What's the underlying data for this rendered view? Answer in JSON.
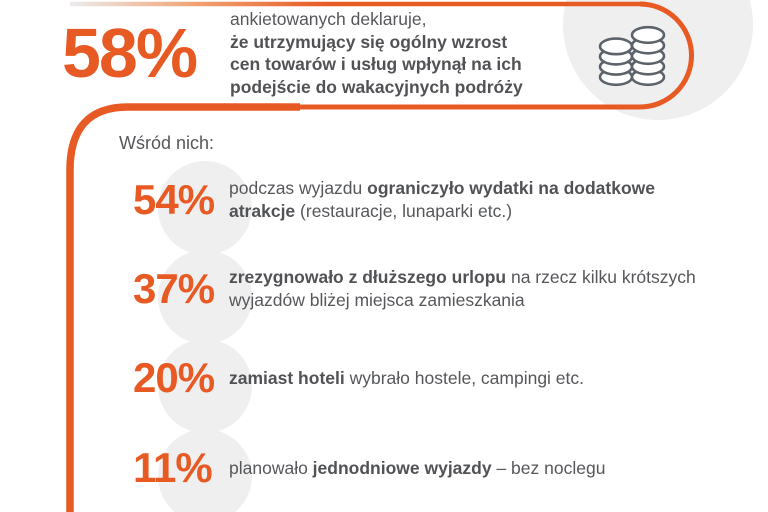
{
  "accent_color": "#e85a24",
  "circle_color": "#efeff0",
  "text_color": "#56575a",
  "headline": {
    "stat_value": "58%",
    "segments": [
      {
        "text": "ankietowanych deklaruje,",
        "bold": false
      },
      {
        "break": true
      },
      {
        "text": "że utrzymujący się ogólny wzrost",
        "bold": true
      },
      {
        "break": true
      },
      {
        "text": "cen towarów i usług wpłynął na ich",
        "bold": true
      },
      {
        "break": true
      },
      {
        "text": "podejście do wakacyjnych podróży",
        "bold": true
      }
    ],
    "icon": "coins-icon"
  },
  "list_intro": "Wśród nich:",
  "items": [
    {
      "value": "54%",
      "segments": [
        {
          "text": "podczas wyjazdu ",
          "bold": false
        },
        {
          "text": "ograniczyło wydatki na dodatkowe",
          "bold": true
        },
        {
          "break": true
        },
        {
          "text": "atrakcje",
          "bold": true
        },
        {
          "text": " (restauracje, lunaparki etc.)",
          "bold": false
        }
      ]
    },
    {
      "value": "37%",
      "segments": [
        {
          "text": "zrezygnowało z dłuższego urlopu",
          "bold": true
        },
        {
          "text": " na rzecz kilku krótszych",
          "bold": false
        },
        {
          "break": true
        },
        {
          "text": "wyjazdów bliżej miejsca zamieszkania",
          "bold": false
        }
      ]
    },
    {
      "value": "20%",
      "segments": [
        {
          "text": "zamiast hoteli",
          "bold": true
        },
        {
          "text": " wybrało hostele, campingi etc.",
          "bold": false
        }
      ]
    },
    {
      "value": "11%",
      "segments": [
        {
          "text": "planowało ",
          "bold": false
        },
        {
          "text": "jednodniowe wyjazdy",
          "bold": true
        },
        {
          "text": " – bez noclegu",
          "bold": false
        }
      ]
    }
  ],
  "chart_data": {
    "type": "table",
    "title": "58% ankietowanych deklaruje, że utrzymujący się ogólny wzrost cen towarów i usług wpłynął na ich podejście do wakacyjnych podróży",
    "subtitle": "Wśród nich:",
    "main_stat_pct": 58,
    "unit": "%",
    "categories": [
      "podczas wyjazdu ograniczyło wydatki na dodatkowe atrakcje (restauracje, lunaparki etc.)",
      "zrezygnowało z dłuższego urlopu na rzecz kilku krótszych wyjazdów bliżej miejsca zamieszkania",
      "zamiast hoteli wybrało hostele, campingi etc.",
      "planowało jednodniowe wyjazdy – bez noclegu"
    ],
    "values": [
      54,
      37,
      20,
      11
    ]
  }
}
